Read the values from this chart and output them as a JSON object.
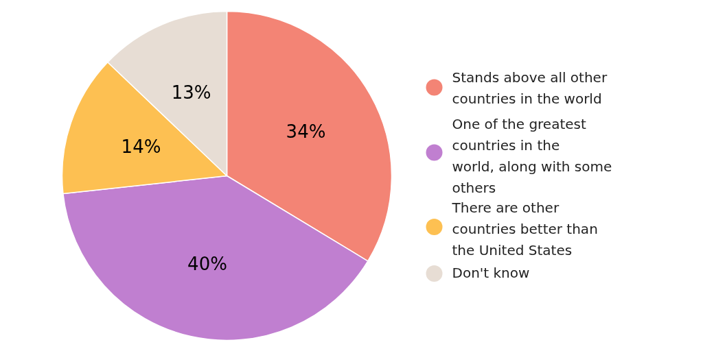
{
  "chart_data": {
    "type": "pie",
    "categories": [
      "Stands above all other countries in the world",
      "One of the greatest countries in the world, along with some others",
      "There are other countries better than the United States",
      "Don't know"
    ],
    "values": [
      34,
      40,
      14,
      13
    ],
    "colors": [
      "#f38475",
      "#c07fd0",
      "#fdc052",
      "#e7ddd4"
    ],
    "value_labels": [
      "34%",
      "40%",
      "14%",
      "13%"
    ],
    "legend": "right"
  }
}
